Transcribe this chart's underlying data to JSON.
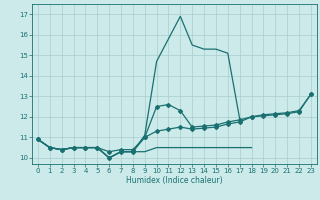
{
  "xlabel": "Humidex (Indice chaleur)",
  "x_all": [
    0,
    1,
    2,
    3,
    4,
    5,
    6,
    7,
    8,
    9,
    10,
    11,
    12,
    13,
    14,
    15,
    16,
    17,
    18,
    19,
    20,
    21,
    22,
    23
  ],
  "line_spike": [
    10.9,
    10.5,
    10.4,
    10.5,
    10.5,
    10.5,
    10.0,
    10.3,
    10.3,
    11.1,
    14.7,
    15.8,
    16.9,
    15.5,
    15.3,
    15.3,
    15.1,
    11.9,
    null,
    null,
    null,
    null,
    null,
    null
  ],
  "line_upper": [
    10.9,
    10.5,
    10.4,
    10.5,
    10.5,
    10.5,
    10.3,
    10.4,
    10.4,
    11.0,
    12.5,
    12.6,
    12.3,
    11.5,
    11.55,
    11.6,
    11.75,
    11.85,
    12.0,
    12.1,
    12.15,
    12.2,
    12.3,
    13.1
  ],
  "line_lower": [
    10.9,
    10.5,
    10.4,
    10.5,
    10.5,
    10.5,
    10.0,
    10.3,
    10.3,
    11.0,
    11.3,
    11.4,
    11.5,
    11.4,
    11.45,
    11.5,
    11.65,
    11.75,
    12.0,
    12.05,
    12.1,
    12.15,
    12.25,
    13.1
  ],
  "line_flat_x": [
    0,
    1,
    2,
    3,
    4,
    5,
    6,
    7,
    8,
    9,
    10,
    11,
    12,
    13,
    14,
    15,
    16,
    17,
    18
  ],
  "line_flat_y": [
    10.9,
    10.5,
    10.4,
    10.5,
    10.5,
    10.5,
    10.0,
    10.3,
    10.3,
    10.3,
    10.5,
    10.5,
    10.5,
    10.5,
    10.5,
    10.5,
    10.5,
    10.5,
    10.5
  ],
  "ylim": [
    9.7,
    17.5
  ],
  "xlim": [
    -0.5,
    23.5
  ],
  "yticks": [
    10,
    11,
    12,
    13,
    14,
    15,
    16,
    17
  ],
  "xticks": [
    0,
    1,
    2,
    3,
    4,
    5,
    6,
    7,
    8,
    9,
    10,
    11,
    12,
    13,
    14,
    15,
    16,
    17,
    18,
    19,
    20,
    21,
    22,
    23
  ],
  "line_color": "#1a7070",
  "bg_color": "#cceaea",
  "grid_color": "#aacccc",
  "figsize": [
    3.2,
    2.0
  ],
  "dpi": 100
}
